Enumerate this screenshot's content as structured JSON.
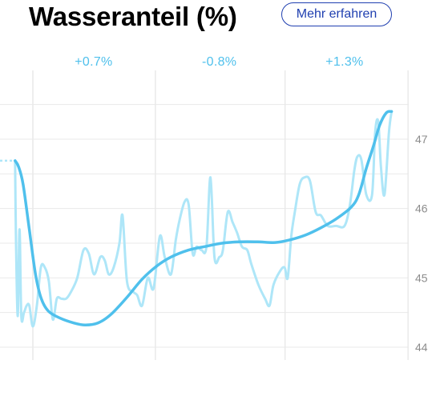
{
  "header": {
    "title": "Wasseranteil (%)",
    "more_button_label": "Mehr erfahren"
  },
  "colors": {
    "accent": "#1f3fb0",
    "trend": "#4fc0ec",
    "raw": "#aee6f8",
    "grid": "#e9e9e9",
    "change_text": "#4fc0ec",
    "tick_text": "#8c8c8c"
  },
  "chart_data": {
    "type": "line",
    "title": "Wasseranteil (%)",
    "xlabel": "",
    "ylabel": "",
    "ylim": [
      43.8,
      47.6
    ],
    "xlim": [
      0,
      100
    ],
    "y_ticks": [
      44,
      45,
      46,
      47
    ],
    "grid": true,
    "period_changes": [
      "+0.7%",
      "-0.8%",
      "+1.3%"
    ],
    "series": [
      {
        "role": "raw",
        "values": [
          [
            0.0,
            46.69
          ],
          [
            3.4,
            46.69
          ],
          [
            3.6,
            45.55
          ],
          [
            4.0,
            44.45
          ],
          [
            4.4,
            45.7
          ],
          [
            4.8,
            44.45
          ],
          [
            5.4,
            44.5
          ],
          [
            6.0,
            44.6
          ],
          [
            6.6,
            44.6
          ],
          [
            7.4,
            44.3
          ],
          [
            8.3,
            44.6
          ],
          [
            9.2,
            45.15
          ],
          [
            10.1,
            45.15
          ],
          [
            11.0,
            44.95
          ],
          [
            11.9,
            44.4
          ],
          [
            12.8,
            44.7
          ],
          [
            13.8,
            44.7
          ],
          [
            14.9,
            44.7
          ],
          [
            16.0,
            44.8
          ],
          [
            17.4,
            45.0
          ],
          [
            18.8,
            45.4
          ],
          [
            20.0,
            45.35
          ],
          [
            21.2,
            45.05
          ],
          [
            22.6,
            45.3
          ],
          [
            23.6,
            45.25
          ],
          [
            24.5,
            45.05
          ],
          [
            25.6,
            45.15
          ],
          [
            26.9,
            45.5
          ],
          [
            27.6,
            45.9
          ],
          [
            28.6,
            44.95
          ],
          [
            30.0,
            44.8
          ],
          [
            30.9,
            44.75
          ],
          [
            32.0,
            44.6
          ],
          [
            33.3,
            45.0
          ],
          [
            34.6,
            44.85
          ],
          [
            36.0,
            45.6
          ],
          [
            37.1,
            45.3
          ],
          [
            38.5,
            45.05
          ],
          [
            39.6,
            45.55
          ],
          [
            40.5,
            45.85
          ],
          [
            41.6,
            46.1
          ],
          [
            42.5,
            46.05
          ],
          [
            43.4,
            45.35
          ],
          [
            44.3,
            45.45
          ],
          [
            45.4,
            45.4
          ],
          [
            46.5,
            45.45
          ],
          [
            47.4,
            46.45
          ],
          [
            48.3,
            45.3
          ],
          [
            49.4,
            45.3
          ],
          [
            50.2,
            45.4
          ],
          [
            51.3,
            45.95
          ],
          [
            52.4,
            45.8
          ],
          [
            53.4,
            45.65
          ],
          [
            54.5,
            45.45
          ],
          [
            55.7,
            45.4
          ],
          [
            56.6,
            45.2
          ],
          [
            58.2,
            44.9
          ],
          [
            59.7,
            44.7
          ],
          [
            60.7,
            44.6
          ],
          [
            61.6,
            44.9
          ],
          [
            63.1,
            45.1
          ],
          [
            64.1,
            45.15
          ],
          [
            64.8,
            45.0
          ],
          [
            65.6,
            45.6
          ],
          [
            66.4,
            45.95
          ],
          [
            67.5,
            46.35
          ],
          [
            68.6,
            46.45
          ],
          [
            69.8,
            46.4
          ],
          [
            71.1,
            45.95
          ],
          [
            72.3,
            45.9
          ],
          [
            73.8,
            45.75
          ],
          [
            75.7,
            45.75
          ],
          [
            77.6,
            45.75
          ],
          [
            78.8,
            46.05
          ],
          [
            79.8,
            46.55
          ],
          [
            80.5,
            46.75
          ],
          [
            81.4,
            46.7
          ],
          [
            82.5,
            46.2
          ],
          [
            83.8,
            46.2
          ],
          [
            84.5,
            47.1
          ],
          [
            85.2,
            47.25
          ],
          [
            85.8,
            46.6
          ],
          [
            86.6,
            46.2
          ],
          [
            87.6,
            47.1
          ],
          [
            88.2,
            47.4
          ]
        ]
      },
      {
        "role": "trend",
        "values": [
          [
            3.4,
            46.69
          ],
          [
            4.2,
            46.6
          ],
          [
            5.2,
            46.35
          ],
          [
            6.6,
            45.7
          ],
          [
            8.0,
            45.05
          ],
          [
            9.3,
            44.7
          ],
          [
            10.9,
            44.52
          ],
          [
            13.5,
            44.42
          ],
          [
            16.6,
            44.35
          ],
          [
            19.2,
            44.32
          ],
          [
            22.1,
            44.35
          ],
          [
            25.1,
            44.48
          ],
          [
            28.6,
            44.72
          ],
          [
            32.0,
            44.98
          ],
          [
            35.3,
            45.17
          ],
          [
            38.5,
            45.3
          ],
          [
            42.4,
            45.4
          ],
          [
            46.0,
            45.45
          ],
          [
            50.0,
            45.5
          ],
          [
            54.0,
            45.52
          ],
          [
            58.0,
            45.52
          ],
          [
            62.0,
            45.51
          ],
          [
            65.4,
            45.55
          ],
          [
            68.9,
            45.62
          ],
          [
            72.2,
            45.72
          ],
          [
            75.7,
            45.85
          ],
          [
            79.1,
            46.02
          ],
          [
            80.8,
            46.2
          ],
          [
            82.5,
            46.58
          ],
          [
            84.1,
            46.9
          ],
          [
            85.5,
            47.2
          ],
          [
            87.0,
            47.38
          ],
          [
            88.2,
            47.4
          ]
        ]
      }
    ]
  }
}
